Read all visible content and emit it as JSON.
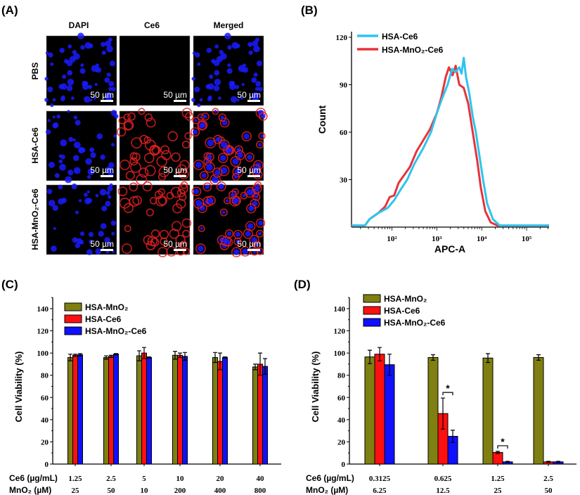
{
  "panel_labels": [
    "(A)",
    "(B)",
    "(C)",
    "(D)"
  ],
  "panel_a": {
    "columns": [
      "DAPI",
      "Ce6",
      "Merged"
    ],
    "rows": [
      "PBS",
      "HSA-Ce6",
      "HSA-MnO₂-Ce6"
    ],
    "scale_bar": "50 µm",
    "colors": {
      "dapi": "#1a1aff",
      "ce6": "#e02020",
      "background": "#000000"
    }
  },
  "chart_data": [
    {
      "type": "line",
      "panel": "(B)",
      "xlabel": "APC-A",
      "ylabel": "Count",
      "x_scale": "log",
      "xlim_log10": [
        1.1,
        5.5
      ],
      "x_ticks": [
        "10²",
        "10³",
        "10⁴",
        "10⁵"
      ],
      "ylim": [
        0,
        125
      ],
      "y_ticks": [
        30,
        60,
        90,
        120
      ],
      "legend": "top-left",
      "series": [
        {
          "name": "HSA-Ce6",
          "color": "#2ec4ee",
          "points_log10x": [
            [
              1.1,
              1
            ],
            [
              1.4,
              1
            ],
            [
              1.5,
              5
            ],
            [
              1.7,
              9
            ],
            [
              1.9,
              12
            ],
            [
              2.05,
              17
            ],
            [
              2.2,
              24
            ],
            [
              2.34,
              30
            ],
            [
              2.5,
              40
            ],
            [
              2.7,
              50
            ],
            [
              2.87,
              60
            ],
            [
              3.0,
              72
            ],
            [
              3.1,
              80
            ],
            [
              3.24,
              90
            ],
            [
              3.34,
              100
            ],
            [
              3.42,
              98
            ],
            [
              3.5,
              101
            ],
            [
              3.55,
              97
            ],
            [
              3.6,
              107
            ],
            [
              3.65,
              95
            ],
            [
              3.72,
              85
            ],
            [
              3.8,
              70
            ],
            [
              3.87,
              60
            ],
            [
              3.95,
              45
            ],
            [
              4.03,
              30
            ],
            [
              4.12,
              15
            ],
            [
              4.25,
              5
            ],
            [
              4.4,
              1
            ],
            [
              5.5,
              1
            ]
          ]
        },
        {
          "name": "HSA-MnO₂-Ce6",
          "color": "#e8323a",
          "points_log10x": [
            [
              1.1,
              1
            ],
            [
              1.4,
              1
            ],
            [
              1.5,
              5
            ],
            [
              1.7,
              9
            ],
            [
              1.85,
              13
            ],
            [
              1.95,
              19
            ],
            [
              2.05,
              20
            ],
            [
              2.15,
              28
            ],
            [
              2.25,
              32
            ],
            [
              2.4,
              38
            ],
            [
              2.55,
              48
            ],
            [
              2.7,
              55
            ],
            [
              2.85,
              62
            ],
            [
              3.0,
              72
            ],
            [
              3.1,
              82
            ],
            [
              3.2,
              95
            ],
            [
              3.27,
              101
            ],
            [
              3.35,
              96
            ],
            [
              3.42,
              102
            ],
            [
              3.5,
              90
            ],
            [
              3.6,
              88
            ],
            [
              3.7,
              78
            ],
            [
              3.8,
              60
            ],
            [
              3.9,
              42
            ],
            [
              3.98,
              25
            ],
            [
              4.08,
              10
            ],
            [
              4.2,
              3
            ],
            [
              4.35,
              1
            ],
            [
              5.5,
              1
            ]
          ]
        }
      ]
    },
    {
      "type": "bar",
      "panel": "(C)",
      "ylabel": "Cell Viability (%)",
      "ylim": [
        0,
        150
      ],
      "y_ticks": [
        0,
        20,
        40,
        60,
        80,
        100,
        120,
        140
      ],
      "row_labels": [
        "Ce6 (µg/mL)",
        "MnO₂ (µM)"
      ],
      "categories": [
        "1.25",
        "2.5",
        "5",
        "10",
        "20",
        "40"
      ],
      "categories2": [
        "25",
        "50",
        "10",
        "200",
        "400",
        "800"
      ],
      "legend": "top-left",
      "series": [
        {
          "name": "HSA-MnO₂",
          "color": "#7f7f12",
          "values": [
            96,
            96,
            97.5,
            98,
            96,
            87.5
          ],
          "errors": [
            3,
            1.5,
            4.5,
            3.5,
            4.5,
            2.5
          ]
        },
        {
          "name": "HSA-Ce6",
          "color": "#ff1010",
          "values": [
            98,
            97,
            100,
            98,
            92.5,
            90
          ],
          "errors": [
            1,
            1,
            5,
            2,
            7.5,
            10
          ]
        },
        {
          "name": "HSA-MnO₂-Ce6",
          "color": "#1010ff",
          "values": [
            98.5,
            99,
            96,
            97,
            96,
            88
          ],
          "errors": [
            1,
            0.5,
            0.5,
            3.5,
            0.5,
            7
          ]
        }
      ]
    },
    {
      "type": "bar",
      "panel": "(D)",
      "ylabel": "Cell Viability (%)",
      "ylim": [
        0,
        150
      ],
      "y_ticks": [
        0,
        20,
        40,
        60,
        80,
        100,
        120,
        140
      ],
      "row_labels": [
        "Ce6 (µg/mL)",
        "MnO₂ (µM)"
      ],
      "categories": [
        "0.3125",
        "0.625",
        "1.25",
        "2.5"
      ],
      "categories2": [
        "6.25",
        "12.5",
        "25",
        "50"
      ],
      "legend": "top-left",
      "annotations": [
        {
          "text": "*",
          "category": "0.625"
        },
        {
          "text": "*",
          "category": "1.25"
        }
      ],
      "series": [
        {
          "name": "HSA-MnO₂",
          "color": "#7f7f12",
          "values": [
            96.5,
            96,
            95.5,
            96
          ],
          "errors": [
            6,
            2.5,
            4,
            2.5
          ]
        },
        {
          "name": "HSA-Ce6",
          "color": "#ff1010",
          "values": [
            99,
            45.5,
            10.5,
            2
          ],
          "errors": [
            6,
            14,
            1,
            0.5
          ]
        },
        {
          "name": "HSA-MnO₂-Ce6",
          "color": "#1010ff",
          "values": [
            89.5,
            25,
            2,
            2
          ],
          "errors": [
            9.5,
            5.5,
            0.5,
            0.5
          ]
        }
      ]
    }
  ]
}
